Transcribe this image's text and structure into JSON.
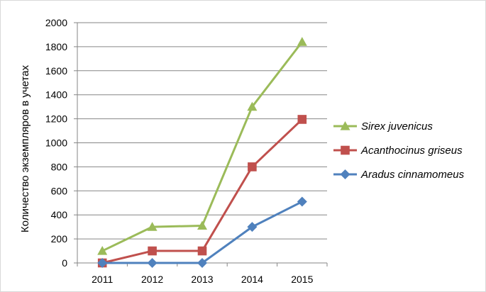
{
  "chart_data": {
    "type": "line",
    "title": "",
    "xlabel": "",
    "ylabel": "Количество экземпляров в учетах",
    "categories": [
      "2011",
      "2012",
      "2013",
      "2014",
      "2015"
    ],
    "ylim": [
      0,
      2000
    ],
    "yticks": [
      0,
      200,
      400,
      600,
      800,
      1000,
      1200,
      1400,
      1600,
      1800,
      2000
    ],
    "grid": true,
    "legend_position": "right",
    "series": [
      {
        "name": "Sirex juvenicus",
        "values": [
          100,
          300,
          310,
          1300,
          1840
        ],
        "color": "#9BBB59",
        "marker": "triangle"
      },
      {
        "name": "Acanthocinus griseus",
        "values": [
          0,
          100,
          100,
          800,
          1195
        ],
        "color": "#C0504D",
        "marker": "square"
      },
      {
        "name": "Aradus cinnamomeus",
        "values": [
          0,
          0,
          0,
          300,
          510
        ],
        "color": "#4F81BD",
        "marker": "diamond"
      }
    ]
  }
}
